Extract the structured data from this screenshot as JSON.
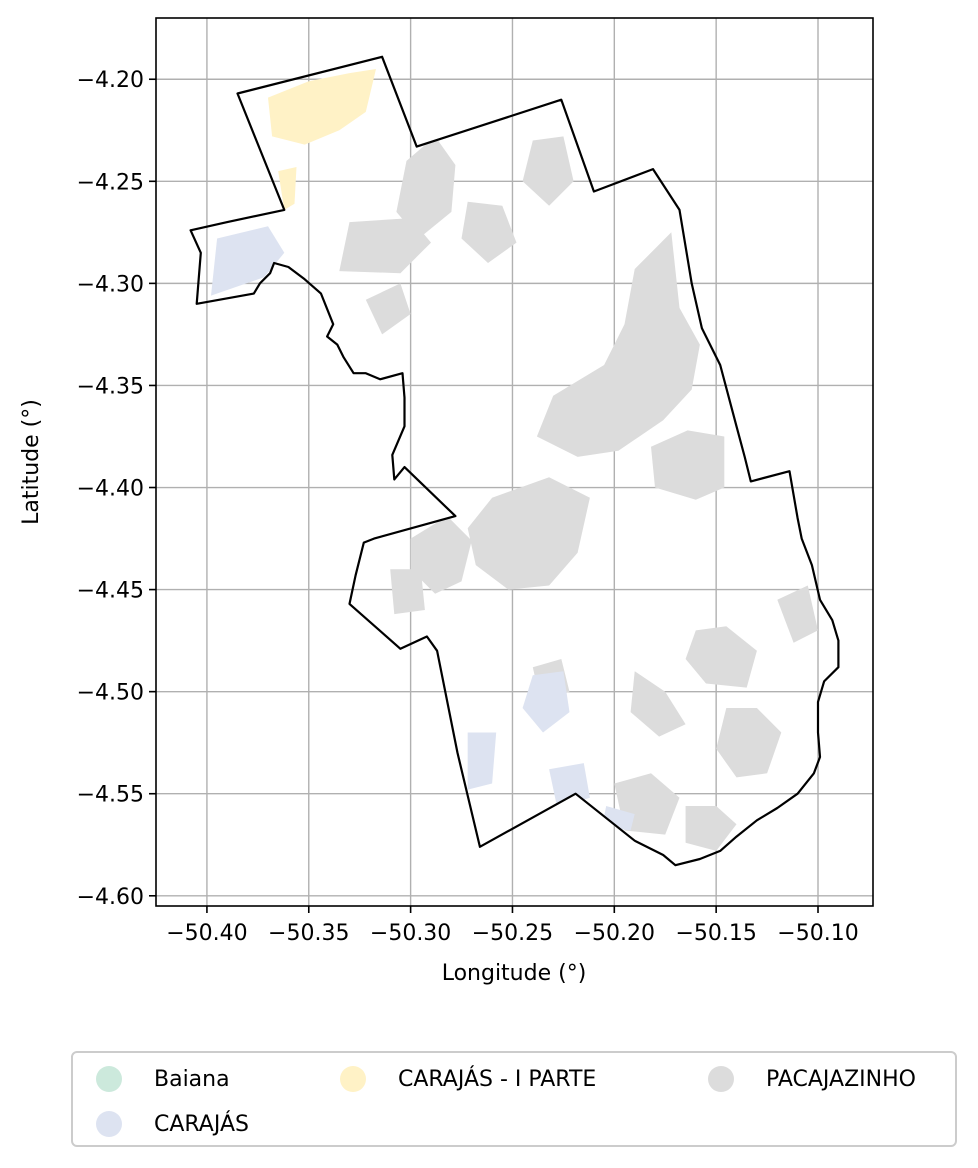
{
  "chart_data": {
    "type": "map",
    "xlabel": "Longitude (°)",
    "ylabel": "Latitude (°)",
    "xlim": [
      -50.425,
      -50.073
    ],
    "ylim": [
      -4.605,
      -4.17
    ],
    "grid": true,
    "x_ticks": [
      -50.4,
      -50.35,
      -50.3,
      -50.25,
      -50.2,
      -50.15,
      -50.1
    ],
    "x_tick_labels": [
      "−50.40",
      "−50.35",
      "−50.30",
      "−50.25",
      "−50.20",
      "−50.15",
      "−50.10"
    ],
    "y_ticks": [
      -4.2,
      -4.25,
      -4.3,
      -4.35,
      -4.4,
      -4.45,
      -4.5,
      -4.55,
      -4.6
    ],
    "y_tick_labels": [
      "−4.20",
      "−4.25",
      "−4.30",
      "−4.35",
      "−4.40",
      "−4.45",
      "−4.50",
      "−4.55",
      "−4.60"
    ],
    "boundary_color": "#000000",
    "legend_position": "below",
    "categories": [
      {
        "name": "Baiana",
        "color": "#cce9dc"
      },
      {
        "name": "CARAJÁS",
        "color": "#dde3f1"
      },
      {
        "name": "CARAJÁS - I PARTE",
        "color": "#fff2c6"
      },
      {
        "name": "PACAJAZINHO",
        "color": "#dcdcdc"
      }
    ],
    "boundary": [
      [
        -50.314,
        -4.189
      ],
      [
        -50.297,
        -4.233
      ],
      [
        -50.226,
        -4.21
      ],
      [
        -50.21,
        -4.255
      ],
      [
        -50.181,
        -4.244
      ],
      [
        -50.168,
        -4.264
      ],
      [
        -50.162,
        -4.3
      ],
      [
        -50.157,
        -4.322
      ],
      [
        -50.148,
        -4.34
      ],
      [
        -50.14,
        -4.37
      ],
      [
        -50.136,
        -4.385
      ],
      [
        -50.133,
        -4.397
      ],
      [
        -50.114,
        -4.392
      ],
      [
        -50.11,
        -4.415
      ],
      [
        -50.108,
        -4.425
      ],
      [
        -50.103,
        -4.438
      ],
      [
        -50.099,
        -4.455
      ],
      [
        -50.093,
        -4.465
      ],
      [
        -50.09,
        -4.475
      ],
      [
        -50.09,
        -4.488
      ],
      [
        -50.097,
        -4.495
      ],
      [
        -50.1,
        -4.505
      ],
      [
        -50.1,
        -4.52
      ],
      [
        -50.099,
        -4.532
      ],
      [
        -50.102,
        -4.54
      ],
      [
        -50.11,
        -4.55
      ],
      [
        -50.12,
        -4.557
      ],
      [
        -50.13,
        -4.563
      ],
      [
        -50.14,
        -4.571
      ],
      [
        -50.148,
        -4.578
      ],
      [
        -50.158,
        -4.582
      ],
      [
        -50.17,
        -4.585
      ],
      [
        -50.176,
        -4.58
      ],
      [
        -50.19,
        -4.573
      ],
      [
        -50.219,
        -4.55
      ],
      [
        -50.266,
        -4.576
      ],
      [
        -50.277,
        -4.53
      ],
      [
        -50.287,
        -4.48
      ],
      [
        -50.292,
        -4.473
      ],
      [
        -50.305,
        -4.479
      ],
      [
        -50.33,
        -4.457
      ],
      [
        -50.327,
        -4.443
      ],
      [
        -50.323,
        -4.427
      ],
      [
        -50.318,
        -4.425
      ],
      [
        -50.278,
        -4.414
      ],
      [
        -50.303,
        -4.39
      ],
      [
        -50.308,
        -4.396
      ],
      [
        -50.309,
        -4.384
      ],
      [
        -50.303,
        -4.37
      ],
      [
        -50.303,
        -4.356
      ],
      [
        -50.304,
        -4.344
      ],
      [
        -50.315,
        -4.347
      ],
      [
        -50.322,
        -4.344
      ],
      [
        -50.328,
        -4.344
      ],
      [
        -50.333,
        -4.336
      ],
      [
        -50.336,
        -4.33
      ],
      [
        -50.341,
        -4.326
      ],
      [
        -50.338,
        -4.32
      ],
      [
        -50.344,
        -4.305
      ],
      [
        -50.352,
        -4.298
      ],
      [
        -50.36,
        -4.292
      ],
      [
        -50.367,
        -4.29
      ],
      [
        -50.369,
        -4.295
      ],
      [
        -50.374,
        -4.3
      ],
      [
        -50.377,
        -4.305
      ],
      [
        -50.405,
        -4.31
      ],
      [
        -50.403,
        -4.285
      ],
      [
        -50.408,
        -4.274
      ],
      [
        -50.39,
        -4.27
      ],
      [
        -50.362,
        -4.264
      ],
      [
        -50.385,
        -4.207
      ]
    ],
    "regions": [
      {
        "category": "PACAJAZINHO",
        "polygon": [
          [
            -50.238,
            -4.375
          ],
          [
            -50.23,
            -4.355
          ],
          [
            -50.205,
            -4.34
          ],
          [
            -50.195,
            -4.32
          ],
          [
            -50.19,
            -4.293
          ],
          [
            -50.172,
            -4.275
          ],
          [
            -50.168,
            -4.312
          ],
          [
            -50.158,
            -4.33
          ],
          [
            -50.162,
            -4.352
          ],
          [
            -50.176,
            -4.367
          ],
          [
            -50.198,
            -4.382
          ],
          [
            -50.218,
            -4.385
          ]
        ]
      },
      {
        "category": "PACAJAZINHO",
        "polygon": [
          [
            -50.182,
            -4.38
          ],
          [
            -50.164,
            -4.372
          ],
          [
            -50.146,
            -4.375
          ],
          [
            -50.146,
            -4.4
          ],
          [
            -50.16,
            -4.406
          ],
          [
            -50.18,
            -4.4
          ]
        ]
      },
      {
        "category": "PACAJAZINHO",
        "polygon": [
          [
            -50.288,
            -4.228
          ],
          [
            -50.278,
            -4.242
          ],
          [
            -50.28,
            -4.265
          ],
          [
            -50.296,
            -4.278
          ],
          [
            -50.307,
            -4.265
          ],
          [
            -50.302,
            -4.24
          ]
        ]
      },
      {
        "category": "PACAJAZINHO",
        "polygon": [
          [
            -50.272,
            -4.26
          ],
          [
            -50.255,
            -4.262
          ],
          [
            -50.248,
            -4.28
          ],
          [
            -50.262,
            -4.29
          ],
          [
            -50.275,
            -4.278
          ]
        ]
      },
      {
        "category": "PACAJAZINHO",
        "polygon": [
          [
            -50.33,
            -4.27
          ],
          [
            -50.3,
            -4.268
          ],
          [
            -50.29,
            -4.28
          ],
          [
            -50.305,
            -4.295
          ],
          [
            -50.335,
            -4.294
          ]
        ]
      },
      {
        "category": "PACAJAZINHO",
        "polygon": [
          [
            -50.24,
            -4.23
          ],
          [
            -50.225,
            -4.228
          ],
          [
            -50.22,
            -4.25
          ],
          [
            -50.232,
            -4.262
          ],
          [
            -50.245,
            -4.25
          ]
        ]
      },
      {
        "category": "PACAJAZINHO",
        "polygon": [
          [
            -50.322,
            -4.308
          ],
          [
            -50.305,
            -4.3
          ],
          [
            -50.3,
            -4.315
          ],
          [
            -50.314,
            -4.325
          ]
        ]
      },
      {
        "category": "PACAJAZINHO",
        "polygon": [
          [
            -50.26,
            -4.405
          ],
          [
            -50.232,
            -4.395
          ],
          [
            -50.212,
            -4.405
          ],
          [
            -50.218,
            -4.432
          ],
          [
            -50.232,
            -4.448
          ],
          [
            -50.252,
            -4.45
          ],
          [
            -50.268,
            -4.438
          ],
          [
            -50.272,
            -4.42
          ]
        ]
      },
      {
        "category": "PACAJAZINHO",
        "polygon": [
          [
            -50.3,
            -4.425
          ],
          [
            -50.282,
            -4.414
          ],
          [
            -50.27,
            -4.426
          ],
          [
            -50.275,
            -4.446
          ],
          [
            -50.288,
            -4.452
          ],
          [
            -50.3,
            -4.44
          ]
        ]
      },
      {
        "category": "PACAJAZINHO",
        "polygon": [
          [
            -50.31,
            -4.44
          ],
          [
            -50.295,
            -4.44
          ],
          [
            -50.293,
            -4.46
          ],
          [
            -50.308,
            -4.462
          ]
        ]
      },
      {
        "category": "PACAJAZINHO",
        "polygon": [
          [
            -50.16,
            -4.47
          ],
          [
            -50.145,
            -4.468
          ],
          [
            -50.13,
            -4.48
          ],
          [
            -50.135,
            -4.498
          ],
          [
            -50.155,
            -4.496
          ],
          [
            -50.165,
            -4.484
          ]
        ]
      },
      {
        "category": "PACAJAZINHO",
        "polygon": [
          [
            -50.19,
            -4.49
          ],
          [
            -50.175,
            -4.5
          ],
          [
            -50.165,
            -4.516
          ],
          [
            -50.178,
            -4.522
          ],
          [
            -50.192,
            -4.51
          ]
        ]
      },
      {
        "category": "PACAJAZINHO",
        "polygon": [
          [
            -50.145,
            -4.508
          ],
          [
            -50.13,
            -4.508
          ],
          [
            -50.118,
            -4.52
          ],
          [
            -50.125,
            -4.54
          ],
          [
            -50.14,
            -4.542
          ],
          [
            -50.15,
            -4.528
          ]
        ]
      },
      {
        "category": "PACAJAZINHO",
        "polygon": [
          [
            -50.2,
            -4.545
          ],
          [
            -50.182,
            -4.54
          ],
          [
            -50.168,
            -4.552
          ],
          [
            -50.175,
            -4.57
          ],
          [
            -50.195,
            -4.568
          ]
        ]
      },
      {
        "category": "PACAJAZINHO",
        "polygon": [
          [
            -50.165,
            -4.556
          ],
          [
            -50.15,
            -4.556
          ],
          [
            -50.14,
            -4.565
          ],
          [
            -50.15,
            -4.578
          ],
          [
            -50.165,
            -4.574
          ]
        ]
      },
      {
        "category": "PACAJAZINHO",
        "polygon": [
          [
            -50.24,
            -4.488
          ],
          [
            -50.226,
            -4.484
          ],
          [
            -50.222,
            -4.5
          ],
          [
            -50.236,
            -4.506
          ]
        ]
      },
      {
        "category": "PACAJAZINHO",
        "polygon": [
          [
            -50.12,
            -4.455
          ],
          [
            -50.105,
            -4.448
          ],
          [
            -50.1,
            -4.47
          ],
          [
            -50.112,
            -4.476
          ]
        ]
      },
      {
        "category": "CARAJÁS",
        "polygon": [
          [
            -50.395,
            -4.278
          ],
          [
            -50.37,
            -4.272
          ],
          [
            -50.362,
            -4.285
          ],
          [
            -50.372,
            -4.297
          ],
          [
            -50.398,
            -4.306
          ]
        ]
      },
      {
        "category": "CARAJÁS",
        "polygon": [
          [
            -50.24,
            -4.492
          ],
          [
            -50.225,
            -4.49
          ],
          [
            -50.222,
            -4.51
          ],
          [
            -50.235,
            -4.52
          ],
          [
            -50.245,
            -4.508
          ]
        ]
      },
      {
        "category": "CARAJÁS",
        "polygon": [
          [
            -50.272,
            -4.52
          ],
          [
            -50.258,
            -4.52
          ],
          [
            -50.26,
            -4.545
          ],
          [
            -50.272,
            -4.548
          ]
        ]
      },
      {
        "category": "CARAJÁS",
        "polygon": [
          [
            -50.232,
            -4.538
          ],
          [
            -50.215,
            -4.535
          ],
          [
            -50.212,
            -4.552
          ],
          [
            -50.228,
            -4.557
          ]
        ]
      },
      {
        "category": "CARAJÁS",
        "polygon": [
          [
            -50.204,
            -4.556
          ],
          [
            -50.19,
            -4.56
          ],
          [
            -50.192,
            -4.568
          ],
          [
            -50.206,
            -4.566
          ]
        ]
      },
      {
        "category": "CARAJÁS - I PARTE",
        "polygon": [
          [
            -50.37,
            -4.209
          ],
          [
            -50.35,
            -4.201
          ],
          [
            -50.33,
            -4.197
          ],
          [
            -50.317,
            -4.195
          ],
          [
            -50.322,
            -4.216
          ],
          [
            -50.335,
            -4.225
          ],
          [
            -50.352,
            -4.232
          ],
          [
            -50.368,
            -4.228
          ]
        ]
      },
      {
        "category": "CARAJÁS - I PARTE",
        "polygon": [
          [
            -50.365,
            -4.245
          ],
          [
            -50.356,
            -4.243
          ],
          [
            -50.357,
            -4.261
          ],
          [
            -50.362,
            -4.264
          ]
        ]
      }
    ]
  },
  "legend": {
    "items": [
      {
        "label": "Baiana",
        "color": "#cce9dc"
      },
      {
        "label": "CARAJÁS - I PARTE",
        "color": "#fff2c6"
      },
      {
        "label": "PACAJAZINHO",
        "color": "#dcdcdc"
      },
      {
        "label": "CARAJÁS",
        "color": "#dde3f1"
      }
    ]
  }
}
